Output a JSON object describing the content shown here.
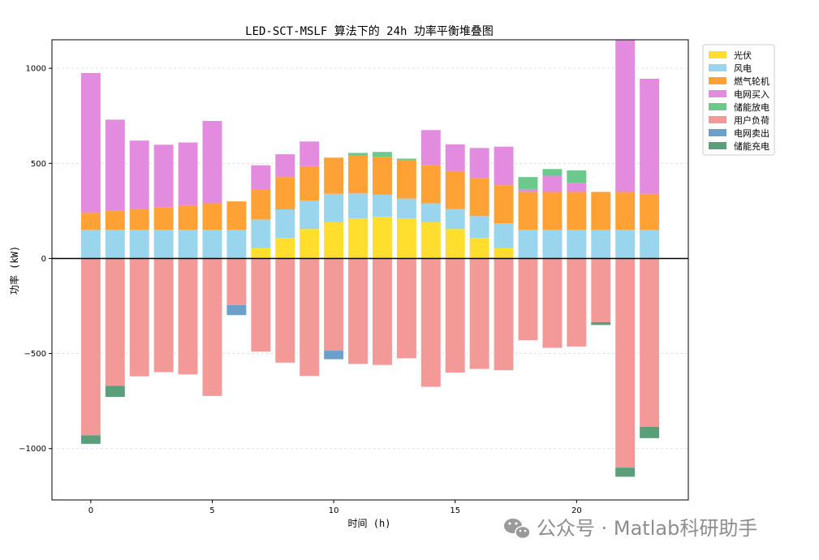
{
  "chart_data": {
    "type": "bar",
    "stacked": true,
    "title": "LED-SCT-MSLF 算法下的 24h 功率平衡堆叠图",
    "xlabel": "时间 (h)",
    "ylabel": "功率 (kW)",
    "xlim": [
      -1.6,
      24.6
    ],
    "ylim": [
      -1270,
      1150
    ],
    "xticks": [
      0,
      5,
      10,
      15,
      20
    ],
    "yticks": [
      -1000,
      -500,
      0,
      500,
      1000
    ],
    "grid": "horizontal dashed",
    "legend_position": "upper-right outside",
    "x": [
      0,
      1,
      2,
      3,
      4,
      5,
      6,
      7,
      8,
      9,
      10,
      11,
      12,
      13,
      14,
      15,
      16,
      17,
      18,
      19,
      20,
      21,
      22,
      23
    ],
    "positive_series": [
      {
        "name": "光伏",
        "color": "#FFDE2E",
        "values": [
          0,
          0,
          0,
          0,
          0,
          0,
          0,
          55,
          108,
          155,
          190,
          210,
          220,
          210,
          190,
          155,
          108,
          55,
          0,
          0,
          0,
          0,
          0,
          0
        ]
      },
      {
        "name": "风电",
        "color": "#9AD5EE",
        "values": [
          150,
          150,
          150,
          150,
          150,
          150,
          150,
          150,
          150,
          150,
          150,
          132,
          115,
          105,
          100,
          105,
          115,
          130,
          150,
          150,
          150,
          150,
          150,
          150
        ]
      },
      {
        "name": "燃气轮机",
        "color": "#FFA235",
        "values": [
          90,
          100,
          110,
          120,
          130,
          140,
          150,
          160,
          170,
          180,
          190,
          198,
          200,
          200,
          200,
          200,
          200,
          200,
          200,
          200,
          200,
          200,
          200,
          190
        ]
      },
      {
        "name": "电网买入",
        "color": "#E28BDF",
        "values": [
          735,
          480,
          360,
          328,
          330,
          433,
          0,
          125,
          120,
          130,
          0,
          0,
          0,
          0,
          185,
          140,
          158,
          203,
          15,
          85,
          48,
          0,
          800,
          605
        ]
      },
      {
        "name": "储能放电",
        "color": "#6BC98C",
        "values": [
          0,
          0,
          0,
          0,
          0,
          0,
          0,
          0,
          0,
          0,
          0,
          15,
          25,
          10,
          0,
          0,
          0,
          0,
          63,
          35,
          65,
          0,
          0,
          0
        ]
      }
    ],
    "negative_series": [
      {
        "name": "用户负荷",
        "color": "#F39A98",
        "values": [
          -930,
          -670,
          -620,
          -598,
          -610,
          -723,
          -245,
          -490,
          -548,
          -618,
          -485,
          -555,
          -560,
          -525,
          -675,
          -600,
          -581,
          -588,
          -430,
          -470,
          -463,
          -335,
          -1100,
          -885
        ]
      },
      {
        "name": "电网卖出",
        "color": "#6DA0C8",
        "values": [
          0,
          0,
          0,
          0,
          0,
          0,
          -53,
          0,
          0,
          0,
          -45,
          0,
          0,
          0,
          0,
          0,
          0,
          0,
          0,
          0,
          0,
          0,
          0,
          0
        ]
      },
      {
        "name": "储能充电",
        "color": "#5A9F7A",
        "values": [
          -45,
          -58,
          0,
          0,
          0,
          0,
          0,
          0,
          0,
          0,
          0,
          0,
          0,
          0,
          0,
          0,
          0,
          0,
          0,
          0,
          0,
          -15,
          -48,
          -60
        ]
      }
    ],
    "legend": [
      "光伏",
      "风电",
      "燃气轮机",
      "电网买入",
      "储能放电",
      "用户负荷",
      "电网卖出",
      "储能充电"
    ],
    "legend_colors": [
      "#FFDE2E",
      "#9AD5EE",
      "#FFA235",
      "#E28BDF",
      "#6BC98C",
      "#F39A98",
      "#6DA0C8",
      "#5A9F7A"
    ]
  },
  "watermark": "公众号 · Matlab科研助手",
  "watermark_icon": "wechat-icon"
}
